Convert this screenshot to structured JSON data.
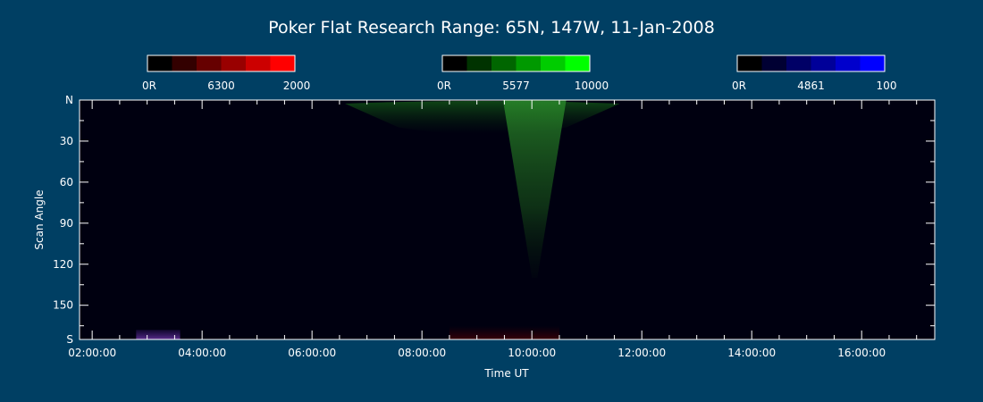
{
  "chart_data": {
    "type": "heatmap",
    "title": "Poker Flat Research Range: 65N, 147W, 11-Jan-2008",
    "xlabel": "Time UT",
    "ylabel": "Scan Angle",
    "x_ticks": [
      "02:00:00",
      "04:00:00",
      "06:00:00",
      "08:00:00",
      "10:00:00",
      "12:00:00",
      "14:00:00",
      "16:00:00"
    ],
    "x_tick_hours": [
      2,
      4,
      6,
      8,
      10,
      12,
      14,
      16
    ],
    "xlim_hours": [
      1.77,
      17.33
    ],
    "y_ticks": [
      "N",
      "30",
      "60",
      "90",
      "120",
      "150",
      "S"
    ],
    "y_tick_values": [
      0,
      30,
      60,
      90,
      120,
      150,
      175
    ],
    "ylim": [
      0,
      175
    ],
    "colorbars": [
      {
        "name": "6300",
        "min_label": "0R",
        "max_label": "2000",
        "colors": [
          "#000000",
          "#330000",
          "#660000",
          "#990000",
          "#cc0000",
          "#ff0000"
        ]
      },
      {
        "name": "5577",
        "min_label": "0R",
        "max_label": "10000",
        "colors": [
          "#000000",
          "#003300",
          "#006600",
          "#009900",
          "#00cc00",
          "#00ff00"
        ]
      },
      {
        "name": "4861",
        "min_label": "0R",
        "max_label": "100",
        "colors": [
          "#000000",
          "#000033",
          "#000066",
          "#000099",
          "#0000cc",
          "#0000ff"
        ]
      }
    ],
    "emission_features": [
      {
        "channel": "5577",
        "hour_start": 6.6,
        "hour_end": 11.6,
        "scan_start": 0,
        "scan_end": 20,
        "intensity": 0.35
      },
      {
        "channel": "5577",
        "hour_start": 9.8,
        "hour_end": 10.3,
        "scan_start": 0,
        "scan_end": 130,
        "intensity": 0.45
      },
      {
        "channel": "6300",
        "hour_start": 8.5,
        "hour_end": 10.5,
        "scan_start": 165,
        "scan_end": 175,
        "intensity": 0.35
      },
      {
        "channel": "4861",
        "hour_start": 2.8,
        "hour_end": 3.6,
        "scan_start": 168,
        "scan_end": 175,
        "intensity": 0.5
      }
    ],
    "background_color": "#003f63",
    "plot_background": "#000010"
  }
}
